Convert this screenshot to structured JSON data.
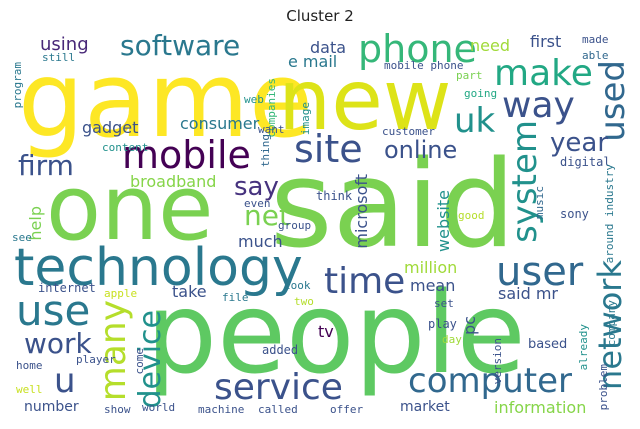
{
  "title": "Cluster 2",
  "words": [
    {
      "text": "said",
      "color": "#7ad151"
    },
    {
      "text": "people",
      "color": "#5ec962"
    },
    {
      "text": "game",
      "color": "#fde725"
    },
    {
      "text": "one",
      "color": "#7ad151"
    },
    {
      "text": "new",
      "color": "#dde318"
    },
    {
      "text": "technology",
      "color": "#2a788e"
    },
    {
      "text": "phone",
      "color": "#35b779"
    },
    {
      "text": "mobile",
      "color": "#440154"
    },
    {
      "text": "service",
      "color": "#3b528b"
    },
    {
      "text": "computer",
      "color": "#31688e"
    },
    {
      "text": "user",
      "color": "#31688e"
    },
    {
      "text": "site",
      "color": "#3b528b"
    },
    {
      "text": "make",
      "color": "#22a884"
    },
    {
      "text": "use",
      "color": "#2a788e"
    },
    {
      "text": "software",
      "color": "#2a788e"
    },
    {
      "text": "way",
      "color": "#3b528b"
    },
    {
      "text": "uk",
      "color": "#21918c"
    },
    {
      "text": "time",
      "color": "#3b528b"
    },
    {
      "text": "used",
      "color": "#31688e"
    },
    {
      "text": "system",
      "color": "#21918c"
    },
    {
      "text": "network",
      "color": "#2a788e"
    },
    {
      "text": "online",
      "color": "#3b528b"
    },
    {
      "text": "year",
      "color": "#3b528b"
    },
    {
      "text": "firm",
      "color": "#3b528b"
    },
    {
      "text": "net",
      "color": "#7ad151"
    },
    {
      "text": "say",
      "color": "#46327e"
    },
    {
      "text": "many",
      "color": "#b5de2b"
    },
    {
      "text": "device",
      "color": "#21918c"
    },
    {
      "text": "work",
      "color": "#3b528b"
    },
    {
      "text": "u",
      "color": "#3b528b"
    },
    {
      "text": "information",
      "color": "#86d549"
    },
    {
      "text": "gadget",
      "color": "#3b528b"
    },
    {
      "text": "consumer",
      "color": "#2a788e"
    },
    {
      "text": "broadband",
      "color": "#86d549"
    },
    {
      "text": "using",
      "color": "#482878"
    },
    {
      "text": "data",
      "color": "#3b528b"
    },
    {
      "text": "e mail",
      "color": "#2a788e"
    },
    {
      "text": "need",
      "color": "#a0da39"
    },
    {
      "text": "first",
      "color": "#3b528b"
    },
    {
      "text": "made",
      "color": "#3b528b"
    },
    {
      "text": "able",
      "color": "#31688e"
    },
    {
      "text": "still",
      "color": "#2a788e"
    },
    {
      "text": "mobile phone",
      "color": "#3b528b"
    },
    {
      "text": "part",
      "color": "#7ad151"
    },
    {
      "text": "going",
      "color": "#22a884"
    },
    {
      "text": "web",
      "color": "#21918c"
    },
    {
      "text": "image",
      "color": "#21918c"
    },
    {
      "text": "companies",
      "color": "#35b779"
    },
    {
      "text": "program",
      "color": "#2a788e"
    },
    {
      "text": "customer",
      "color": "#3b528b"
    },
    {
      "text": "want",
      "color": "#3b528b"
    },
    {
      "text": "content",
      "color": "#21918c"
    },
    {
      "text": "thing",
      "color": "#31688e"
    },
    {
      "text": "digital",
      "color": "#3b528b"
    },
    {
      "text": "music",
      "color": "#31688e"
    },
    {
      "text": "around",
      "color": "#2a788e"
    },
    {
      "text": "industry",
      "color": "#2a788e"
    },
    {
      "text": "microsoft",
      "color": "#3b528b"
    },
    {
      "text": "website",
      "color": "#21918c"
    },
    {
      "text": "even",
      "color": "#3b528b"
    },
    {
      "text": "think",
      "color": "#3b528b"
    },
    {
      "text": "good",
      "color": "#b5de2b"
    },
    {
      "text": "sony",
      "color": "#3b528b"
    },
    {
      "text": "help",
      "color": "#7ad151"
    },
    {
      "text": "see",
      "color": "#2a788e"
    },
    {
      "text": "much",
      "color": "#3b528b"
    },
    {
      "text": "group",
      "color": "#3b528b"
    },
    {
      "text": "million",
      "color": "#a0da39"
    },
    {
      "text": "take",
      "color": "#3b528b"
    },
    {
      "text": "mean",
      "color": "#3b528b"
    },
    {
      "text": "said mr",
      "color": "#3b528b"
    },
    {
      "text": "pc",
      "color": "#3b528b"
    },
    {
      "text": "internet",
      "color": "#3b528b"
    },
    {
      "text": "apple",
      "color": "#c8e020"
    },
    {
      "text": "file",
      "color": "#2a788e"
    },
    {
      "text": "look",
      "color": "#2a788e"
    },
    {
      "text": "two",
      "color": "#b5de2b"
    },
    {
      "text": "set",
      "color": "#3b528b"
    },
    {
      "text": "play",
      "color": "#3b528b"
    },
    {
      "text": "company",
      "color": "#2a788e"
    },
    {
      "text": "tv",
      "color": "#440154"
    },
    {
      "text": "already",
      "color": "#21918c"
    },
    {
      "text": "added",
      "color": "#3b528b"
    },
    {
      "text": "come",
      "color": "#3b528b"
    },
    {
      "text": "day",
      "color": "#a0da39"
    },
    {
      "text": "version",
      "color": "#3b528b"
    },
    {
      "text": "based",
      "color": "#3b528b"
    },
    {
      "text": "problem",
      "color": "#3b528b"
    },
    {
      "text": "home",
      "color": "#3b528b"
    },
    {
      "text": "player",
      "color": "#3b528b"
    },
    {
      "text": "well",
      "color": "#c8e020"
    },
    {
      "text": "number",
      "color": "#3b528b"
    },
    {
      "text": "show",
      "color": "#3b528b"
    },
    {
      "text": "world",
      "color": "#3b528b"
    },
    {
      "text": "machine",
      "color": "#3b528b"
    },
    {
      "text": "called",
      "color": "#3b528b"
    },
    {
      "text": "offer",
      "color": "#3b528b"
    },
    {
      "text": "market",
      "color": "#3b528b"
    }
  ]
}
